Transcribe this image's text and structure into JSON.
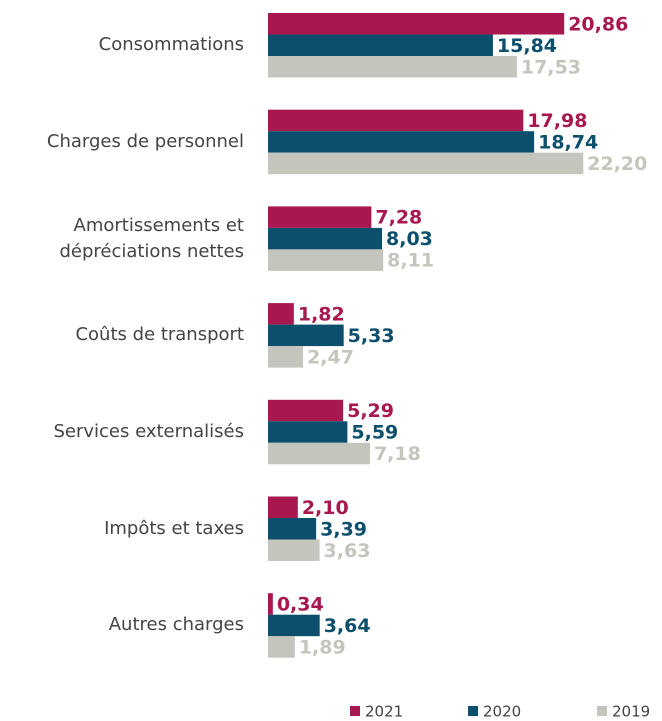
{
  "chart_data": {
    "type": "hbar",
    "categories": [
      "Consommations",
      "Charges de personnel",
      "Amortissements et dépréciations nettes",
      "Coûts de transport",
      "Services externalisés",
      "Impôts et taxes",
      "Autres charges"
    ],
    "series": [
      {
        "name": "2021",
        "color": "#a8174f",
        "values": [
          20.86,
          17.98,
          7.28,
          1.82,
          5.29,
          2.1,
          0.34
        ],
        "value_labels": [
          "20,86",
          "17,98",
          "7,28",
          "1,82",
          "5,29",
          "2,10",
          "0,34"
        ]
      },
      {
        "name": "2020",
        "color": "#0b4f6c",
        "values": [
          15.84,
          18.74,
          8.03,
          5.33,
          5.59,
          3.39,
          3.64
        ],
        "value_labels": [
          "15,84",
          "18,74",
          "8,03",
          "5,33",
          "5,59",
          "3,39",
          "3,64"
        ]
      },
      {
        "name": "2019",
        "color": "#c4c6bd",
        "values": [
          17.53,
          22.2,
          8.11,
          2.47,
          7.18,
          3.63,
          1.89
        ],
        "value_labels": [
          "17,53",
          "22,20",
          "8,11",
          "2,47",
          "7,18",
          "3,63",
          "1,89"
        ]
      }
    ],
    "legend": "bottom-right"
  }
}
